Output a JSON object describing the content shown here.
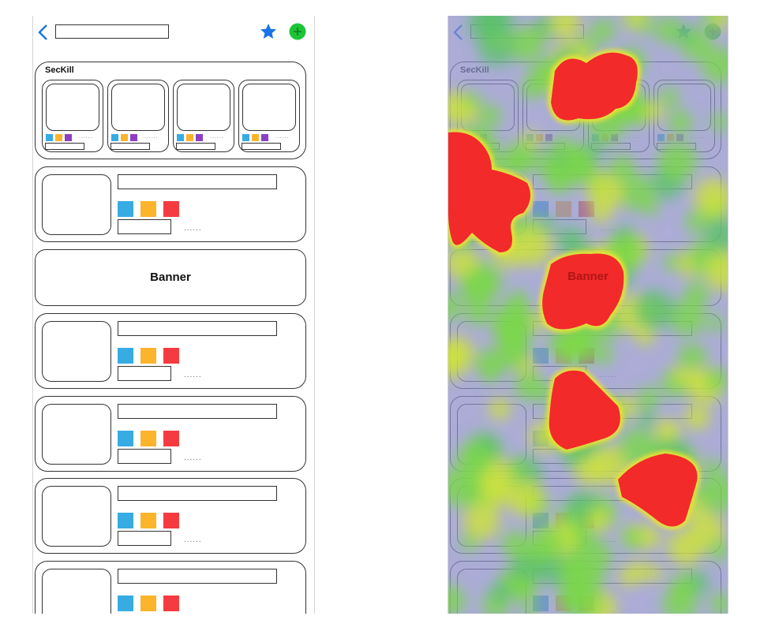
{
  "seckill": {
    "title": "SecKill"
  },
  "banner": {
    "label": "Banner"
  },
  "item_dots": "......",
  "colors": {
    "accent_blue": "#1a73e8",
    "add_green": "#1cc436",
    "swatch_blue": "#36ace2",
    "swatch_yellow": "#fcb42c",
    "swatch_red": "#f53b3f",
    "swatch_purple": "#8d3ec5",
    "heat_low": "#8c8cc8",
    "heat_mid": "#7ad74a",
    "heat_high": "#f22a2a"
  },
  "icons": {
    "back": "chevron-left-icon",
    "favorite": "star-icon",
    "add": "plus-circle-icon"
  }
}
